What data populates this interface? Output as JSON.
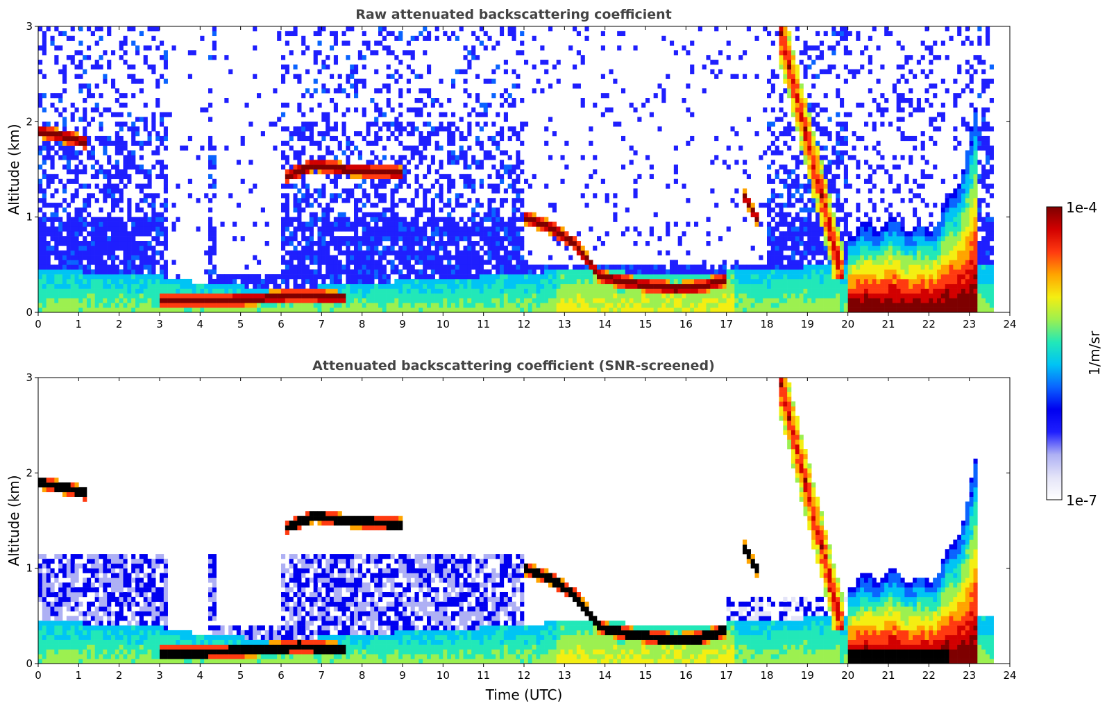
{
  "colors": {
    "colormap": [
      "#ffffff",
      "#e4e4f8",
      "#aeb0f4",
      "#1f1ffe",
      "#0000f0",
      "#0a64ff",
      "#00c4f4",
      "#22e8b8",
      "#9cf050",
      "#f4ee12",
      "#ffa400",
      "#ff3a10",
      "#d20000",
      "#7e0000"
    ],
    "saturated": "#000000",
    "axis": "#000000",
    "title_text": "#444444"
  },
  "chart_data": [
    {
      "type": "heatmap",
      "title": "Raw attenuated backscattering coefficient",
      "xlabel": "",
      "ylabel": "Altitude (km)",
      "xlim": [
        0,
        24
      ],
      "ylim": [
        0,
        3
      ],
      "xticks": [
        "0",
        "1",
        "2",
        "3",
        "4",
        "5",
        "6",
        "7",
        "8",
        "9",
        "10",
        "11",
        "12",
        "13",
        "14",
        "15",
        "16",
        "17",
        "18",
        "19",
        "20",
        "21",
        "22",
        "23",
        "24"
      ],
      "yticks": [
        "0",
        "1",
        "2",
        "3"
      ],
      "features": {
        "boundary_layer_top_km": [
          [
            0,
            0.45
          ],
          [
            3,
            0.38
          ],
          [
            4.2,
            0.3
          ],
          [
            6,
            0.25
          ],
          [
            9,
            0.33
          ],
          [
            12,
            0.4
          ],
          [
            13,
            0.45
          ],
          [
            16,
            0.4
          ],
          [
            18,
            0.45
          ],
          [
            19.8,
            0.5
          ]
        ],
        "cloud_layers": [
          {
            "t": [
              0,
              1.2
            ],
            "alt_km": [
              1.9,
              1.85,
              1.78
            ]
          },
          {
            "t": [
              6.1,
              9.0
            ],
            "alt_km": [
              1.42,
              1.55,
              1.5,
              1.48,
              1.46
            ]
          },
          {
            "t": [
              12.0,
              17.0
            ],
            "alt_km": [
              1.0,
              0.9,
              0.72,
              0.38,
              0.32,
              0.28,
              0.25,
              0.27,
              0.35
            ]
          },
          {
            "t": [
              17.4,
              17.8
            ],
            "alt_km": [
              1.25,
              0.95
            ]
          },
          {
            "t": [
              3.0,
              7.6
            ],
            "alt_km": [
              0.12,
              0.12,
              0.14,
              0.18,
              0.15
            ]
          }
        ],
        "precipitation_band": {
          "t": [
            18.3,
            19.9
          ],
          "alt_km": [
            3.0,
            0.3
          ]
        },
        "low_cloud_dense": {
          "t": [
            20.0,
            23.2
          ],
          "top_km": [
            0.9,
            0.95,
            0.85,
            1.3,
            2.2
          ]
        }
      }
    },
    {
      "type": "heatmap",
      "title": "Attenuated backscattering coefficient (SNR-screened)",
      "xlabel": "Time (UTC)",
      "ylabel": "Altitude (km)",
      "xlim": [
        0,
        24
      ],
      "ylim": [
        0,
        3
      ],
      "xticks": [
        "0",
        "1",
        "2",
        "3",
        "4",
        "5",
        "6",
        "7",
        "8",
        "9",
        "10",
        "11",
        "12",
        "13",
        "14",
        "15",
        "16",
        "17",
        "18",
        "19",
        "20",
        "21",
        "22",
        "23",
        "24"
      ],
      "yticks": [
        "0",
        "1",
        "2",
        "3"
      ],
      "features": {
        "screened_above_km": 1.15,
        "saturated_color": "black"
      }
    }
  ],
  "colorbar": {
    "label": "1/m/sr",
    "max_label": "1e-4",
    "min_label": "1e-7",
    "scale": "log",
    "range": [
      1e-07,
      0.0001
    ]
  }
}
